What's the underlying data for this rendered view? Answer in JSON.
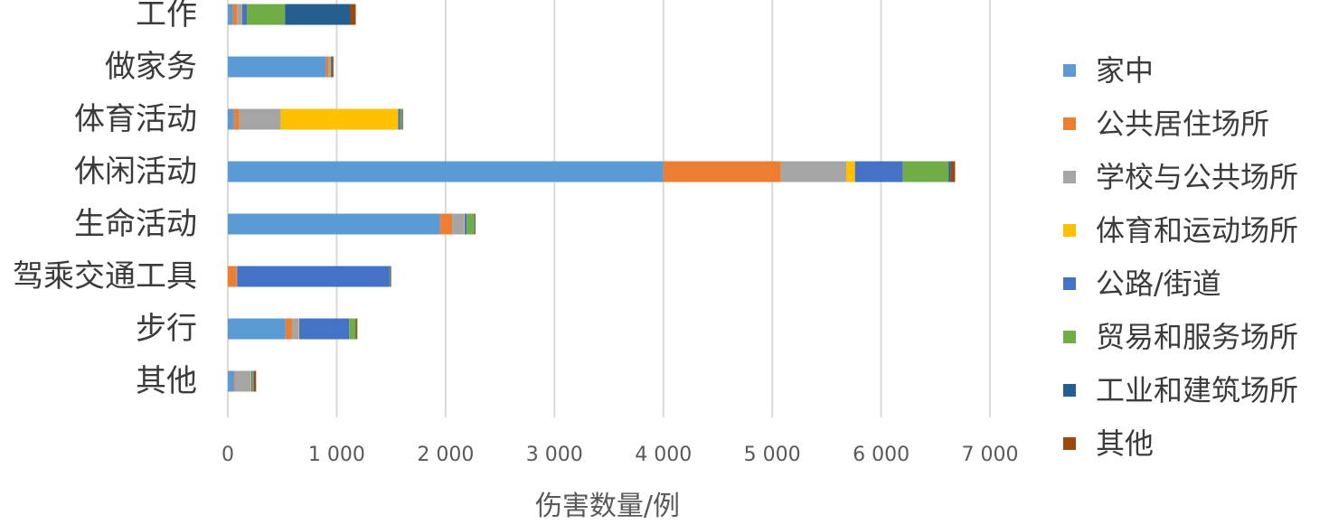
{
  "chart_data": {
    "type": "bar",
    "orientation": "horizontal",
    "stacked": true,
    "categories": [
      "工作",
      "做家务",
      "体育活动",
      "休闲活动",
      "生命活动",
      "驾乘交通工具",
      "步行",
      "其他"
    ],
    "series": [
      {
        "name": "家中",
        "color": "#5b9bd5",
        "values": [
          45,
          900,
          55,
          4000,
          1950,
          0,
          530,
          60
        ]
      },
      {
        "name": "公共居住场所",
        "color": "#ed7d31",
        "values": [
          40,
          25,
          50,
          1080,
          110,
          80,
          60,
          10
        ]
      },
      {
        "name": "学校与公共场所",
        "color": "#a5a5a5",
        "values": [
          40,
          20,
          380,
          600,
          110,
          5,
          60,
          140
        ]
      },
      {
        "name": "体育和运动场所",
        "color": "#ffc000",
        "values": [
          5,
          0,
          1080,
          80,
          5,
          0,
          5,
          5
        ]
      },
      {
        "name": "公路/街道",
        "color": "#4472c4",
        "values": [
          45,
          0,
          20,
          440,
          20,
          1400,
          460,
          10
        ]
      },
      {
        "name": "贸易和服务场所",
        "color": "#70ad47",
        "values": [
          350,
          5,
          15,
          420,
          70,
          5,
          60,
          10
        ]
      },
      {
        "name": "工业和建筑场所",
        "color": "#255e91",
        "values": [
          600,
          5,
          5,
          20,
          5,
          5,
          5,
          5
        ]
      },
      {
        "name": "其他",
        "color": "#9e480e",
        "values": [
          50,
          15,
          5,
          40,
          5,
          5,
          10,
          20
        ]
      }
    ],
    "xlabel": "伤害数量/例",
    "xlim": [
      0,
      7000
    ],
    "xticks": [
      0,
      1000,
      2000,
      3000,
      4000,
      5000,
      6000,
      7000
    ],
    "xtick_labels": [
      "0",
      "1 000",
      "2 000",
      "3 000",
      "4 000",
      "5 000",
      "6 000",
      "7 000"
    ],
    "grid": "vertical",
    "legend_position": "right"
  }
}
